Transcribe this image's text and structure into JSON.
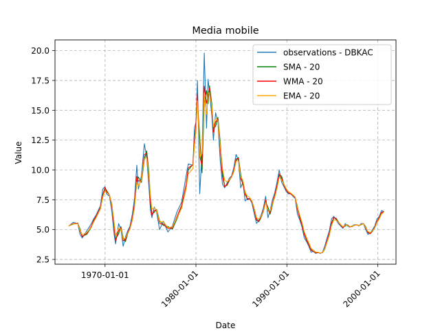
{
  "chart_data": {
    "type": "line",
    "title": "Media mobile",
    "xlabel": "Date",
    "ylabel": "Value",
    "xlim": [
      "1964-07-01",
      "2002-01-01"
    ],
    "ylim": [
      2.1,
      20.9
    ],
    "grid": true,
    "legend_position": "top-right",
    "x_ticks": [
      "1970-01-01",
      "1980-01-01",
      "1990-01-01",
      "2000-01-01"
    ],
    "y_ticks": [
      "2.5",
      "5.0",
      "7.5",
      "10.0",
      "12.5",
      "15.0",
      "17.5",
      "20.0"
    ],
    "series": [
      {
        "name": "observations - DBKAC",
        "color": "#1f77b4",
        "width": 1.1
      },
      {
        "name": "SMA - 20",
        "color": "#008000",
        "width": 1.1
      },
      {
        "name": "WMA - 20",
        "color": "#ff0000",
        "width": 1.1
      },
      {
        "name": "EMA - 20",
        "color": "#ffa500",
        "width": 1.1
      }
    ],
    "observations": [
      [
        "1966-01-01",
        5.3
      ],
      [
        "1966-07-01",
        5.6
      ],
      [
        "1967-01-01",
        5.5
      ],
      [
        "1967-04-01",
        4.6
      ],
      [
        "1967-07-01",
        4.3
      ],
      [
        "1968-01-01",
        4.9
      ],
      [
        "1968-07-01",
        5.5
      ],
      [
        "1968-10-01",
        5.9
      ],
      [
        "1969-01-01",
        6.2
      ],
      [
        "1969-04-01",
        6.6
      ],
      [
        "1969-07-01",
        7.0
      ],
      [
        "1969-10-01",
        8.4
      ],
      [
        "1970-01-01",
        8.6
      ],
      [
        "1970-03-01",
        8.0
      ],
      [
        "1970-07-01",
        7.8
      ],
      [
        "1970-10-01",
        6.5
      ],
      [
        "1971-01-01",
        4.6
      ],
      [
        "1971-03-01",
        3.8
      ],
      [
        "1971-07-01",
        5.5
      ],
      [
        "1971-10-01",
        5.0
      ],
      [
        "1972-01-01",
        3.6
      ],
      [
        "1972-04-01",
        4.4
      ],
      [
        "1972-07-01",
        4.9
      ],
      [
        "1972-10-01",
        5.3
      ],
      [
        "1973-01-01",
        6.3
      ],
      [
        "1973-04-01",
        7.6
      ],
      [
        "1973-07-01",
        10.4
      ],
      [
        "1973-09-01",
        8.4
      ],
      [
        "1974-01-01",
        9.5
      ],
      [
        "1974-05-01",
        12.2
      ],
      [
        "1974-08-01",
        11.0
      ],
      [
        "1974-11-01",
        8.5
      ],
      [
        "1975-01-01",
        6.6
      ],
      [
        "1975-03-01",
        6.0
      ],
      [
        "1975-06-01",
        6.9
      ],
      [
        "1975-09-01",
        6.5
      ],
      [
        "1976-01-01",
        5.0
      ],
      [
        "1976-06-01",
        5.7
      ],
      [
        "1976-12-01",
        4.8
      ],
      [
        "1977-06-01",
        5.3
      ],
      [
        "1977-12-01",
        6.5
      ],
      [
        "1978-06-01",
        7.3
      ],
      [
        "1978-12-01",
        9.5
      ],
      [
        "1979-03-01",
        10.5
      ],
      [
        "1979-09-01",
        10.4
      ],
      [
        "1979-11-01",
        13.5
      ],
      [
        "1980-01-01",
        14.0
      ],
      [
        "1980-03-01",
        17.5
      ],
      [
        "1980-06-01",
        8.0
      ],
      [
        "1980-09-01",
        11.5
      ],
      [
        "1980-12-01",
        19.8
      ],
      [
        "1981-03-01",
        13.5
      ],
      [
        "1981-05-01",
        17.6
      ],
      [
        "1981-07-01",
        16.5
      ],
      [
        "1981-10-01",
        14.5
      ],
      [
        "1981-12-01",
        12.5
      ],
      [
        "1982-03-01",
        14.8
      ],
      [
        "1982-06-01",
        14.0
      ],
      [
        "1982-09-01",
        10.8
      ],
      [
        "1982-12-01",
        8.8
      ],
      [
        "1983-03-01",
        8.5
      ],
      [
        "1983-06-01",
        8.9
      ],
      [
        "1983-09-01",
        9.3
      ],
      [
        "1983-12-01",
        9.5
      ],
      [
        "1984-03-01",
        10.2
      ],
      [
        "1984-06-01",
        11.3
      ],
      [
        "1984-09-01",
        10.8
      ],
      [
        "1984-12-01",
        8.5
      ],
      [
        "1985-03-01",
        9.0
      ],
      [
        "1985-06-01",
        7.4
      ],
      [
        "1985-09-01",
        7.6
      ],
      [
        "1985-12-01",
        7.6
      ],
      [
        "1986-03-01",
        7.2
      ],
      [
        "1986-06-01",
        6.3
      ],
      [
        "1986-09-01",
        5.5
      ],
      [
        "1986-12-01",
        5.8
      ],
      [
        "1987-03-01",
        6.2
      ],
      [
        "1987-06-01",
        6.8
      ],
      [
        "1987-09-01",
        7.8
      ],
      [
        "1987-12-01",
        6.0
      ],
      [
        "1988-03-01",
        6.6
      ],
      [
        "1988-06-01",
        7.5
      ],
      [
        "1988-09-01",
        8.1
      ],
      [
        "1988-12-01",
        9.0
      ],
      [
        "1989-03-01",
        10.0
      ],
      [
        "1989-06-01",
        9.0
      ],
      [
        "1989-09-01",
        8.6
      ],
      [
        "1989-12-01",
        8.2
      ],
      [
        "1990-03-01",
        8.0
      ],
      [
        "1990-06-01",
        8.0
      ],
      [
        "1990-09-01",
        7.8
      ],
      [
        "1990-12-01",
        7.6
      ],
      [
        "1991-03-01",
        6.3
      ],
      [
        "1991-06-01",
        5.8
      ],
      [
        "1991-09-01",
        5.2
      ],
      [
        "1991-12-01",
        4.3
      ],
      [
        "1992-03-01",
        4.0
      ],
      [
        "1992-06-01",
        3.6
      ],
      [
        "1992-09-01",
        3.1
      ],
      [
        "1992-12-01",
        3.2
      ],
      [
        "1993-03-01",
        3.0
      ],
      [
        "1993-06-01",
        3.1
      ],
      [
        "1993-09-01",
        3.0
      ],
      [
        "1993-12-01",
        3.1
      ],
      [
        "1994-03-01",
        3.6
      ],
      [
        "1994-06-01",
        4.3
      ],
      [
        "1994-09-01",
        4.9
      ],
      [
        "1994-12-01",
        5.9
      ],
      [
        "1995-03-01",
        6.1
      ],
      [
        "1995-06-01",
        5.8
      ],
      [
        "1995-09-01",
        5.5
      ],
      [
        "1995-12-01",
        5.3
      ],
      [
        "1996-03-01",
        5.1
      ],
      [
        "1996-06-01",
        5.5
      ],
      [
        "1996-09-01",
        5.3
      ],
      [
        "1996-12-01",
        5.2
      ],
      [
        "1997-03-01",
        5.3
      ],
      [
        "1997-06-01",
        5.4
      ],
      [
        "1997-09-01",
        5.4
      ],
      [
        "1997-12-01",
        5.3
      ],
      [
        "1998-03-01",
        5.5
      ],
      [
        "1998-06-01",
        5.5
      ],
      [
        "1998-09-01",
        5.0
      ],
      [
        "1998-12-01",
        4.6
      ],
      [
        "1999-03-01",
        4.7
      ],
      [
        "1999-06-01",
        5.0
      ],
      [
        "1999-09-01",
        5.3
      ],
      [
        "1999-12-01",
        5.9
      ],
      [
        "2000-03-01",
        6.1
      ],
      [
        "2000-06-01",
        6.6
      ],
      [
        "2000-09-01",
        6.5
      ]
    ]
  }
}
